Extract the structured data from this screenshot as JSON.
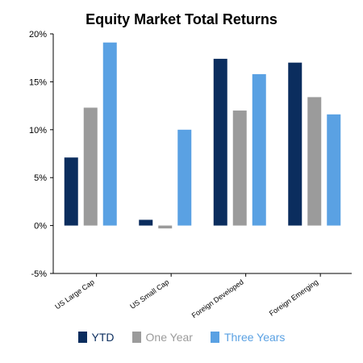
{
  "chart_data": {
    "type": "bar",
    "title": "Equity Market Total Returns",
    "categories": [
      "US Large Cap",
      "US Small Cap",
      "Foreign Developed",
      "Foreign Emerging"
    ],
    "series": [
      {
        "name": "YTD",
        "color": "#0b2d5e",
        "values": [
          7.1,
          0.6,
          17.4,
          17.0
        ]
      },
      {
        "name": "One Year",
        "color": "#9b9b9b",
        "values": [
          12.3,
          -0.3,
          12.0,
          13.4
        ]
      },
      {
        "name": "Three Years",
        "color": "#5aa1e3",
        "values": [
          19.1,
          10.0,
          15.8,
          11.6
        ]
      }
    ],
    "ylim": [
      -5,
      20
    ],
    "yticks": [
      -5,
      0,
      5,
      10,
      15,
      20
    ],
    "ytick_labels": [
      "-5%",
      "0%",
      "5%",
      "10%",
      "15%",
      "20%"
    ],
    "xlabel": "",
    "ylabel": "",
    "grid": false,
    "legend_position": "bottom"
  }
}
